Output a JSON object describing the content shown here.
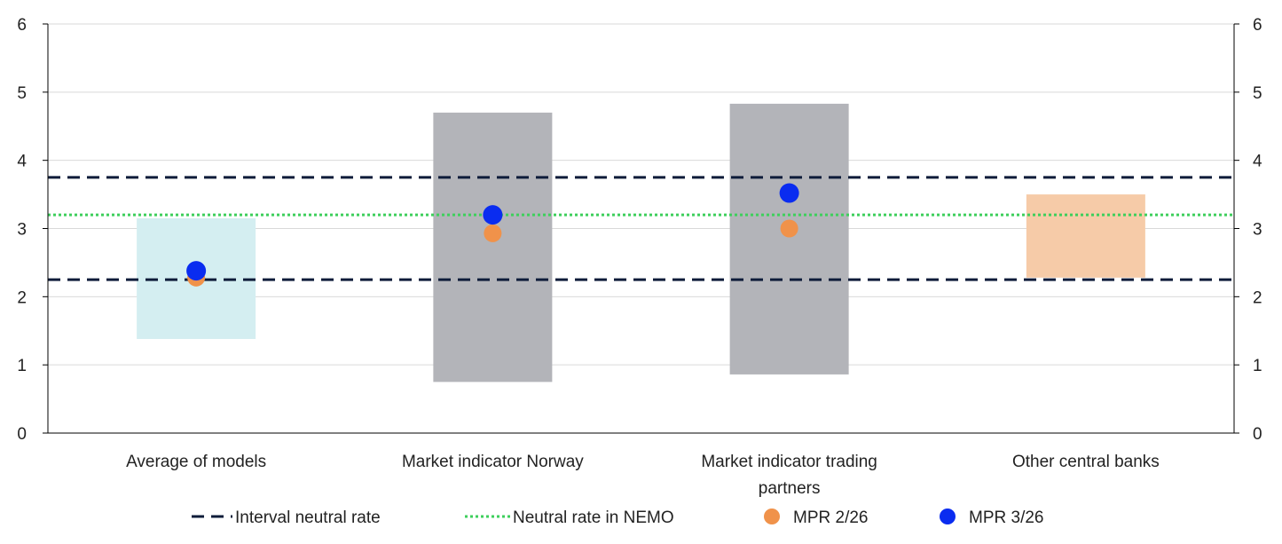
{
  "chart_data": {
    "type": "range",
    "title": "",
    "xlabel": "",
    "ylabel": "",
    "ylim": [
      0,
      6
    ],
    "yticks": [
      0,
      1,
      2,
      3,
      4,
      5,
      6
    ],
    "y2ticks": [
      0,
      1,
      2,
      3,
      4,
      5,
      6
    ],
    "grid": true,
    "legend_position": "bottom",
    "categories": [
      {
        "label_lines": [
          "Average of models"
        ],
        "range": [
          1.38,
          3.15
        ],
        "color": "#d4eef1"
      },
      {
        "label_lines": [
          "Market indicator Norway"
        ],
        "range": [
          0.75,
          4.7
        ],
        "color": "#b3b4b9"
      },
      {
        "label_lines": [
          "Market indicator trading",
          "partners"
        ],
        "range": [
          0.86,
          4.83
        ],
        "color": "#b3b4b9"
      },
      {
        "label_lines": [
          "Other central banks"
        ],
        "range": [
          2.28,
          3.5
        ],
        "color": "#f6cba8"
      }
    ],
    "lines": [
      {
        "name": "Interval neutral rate",
        "values": [
          2.25,
          3.75
        ],
        "style": "dashed",
        "color": "#0e1c3a"
      },
      {
        "name": "Neutral rate in NEMO",
        "values": [
          3.2
        ],
        "style": "dotted",
        "color": "#3ecf5c"
      }
    ],
    "series": [
      {
        "name": "MPR 2/26",
        "values": [
          2.28,
          2.93,
          3.0,
          null
        ],
        "color": "#f0924a"
      },
      {
        "name": "MPR 3/26",
        "values": [
          2.38,
          3.2,
          3.52,
          null
        ],
        "color": "#0a2cf0"
      }
    ]
  }
}
